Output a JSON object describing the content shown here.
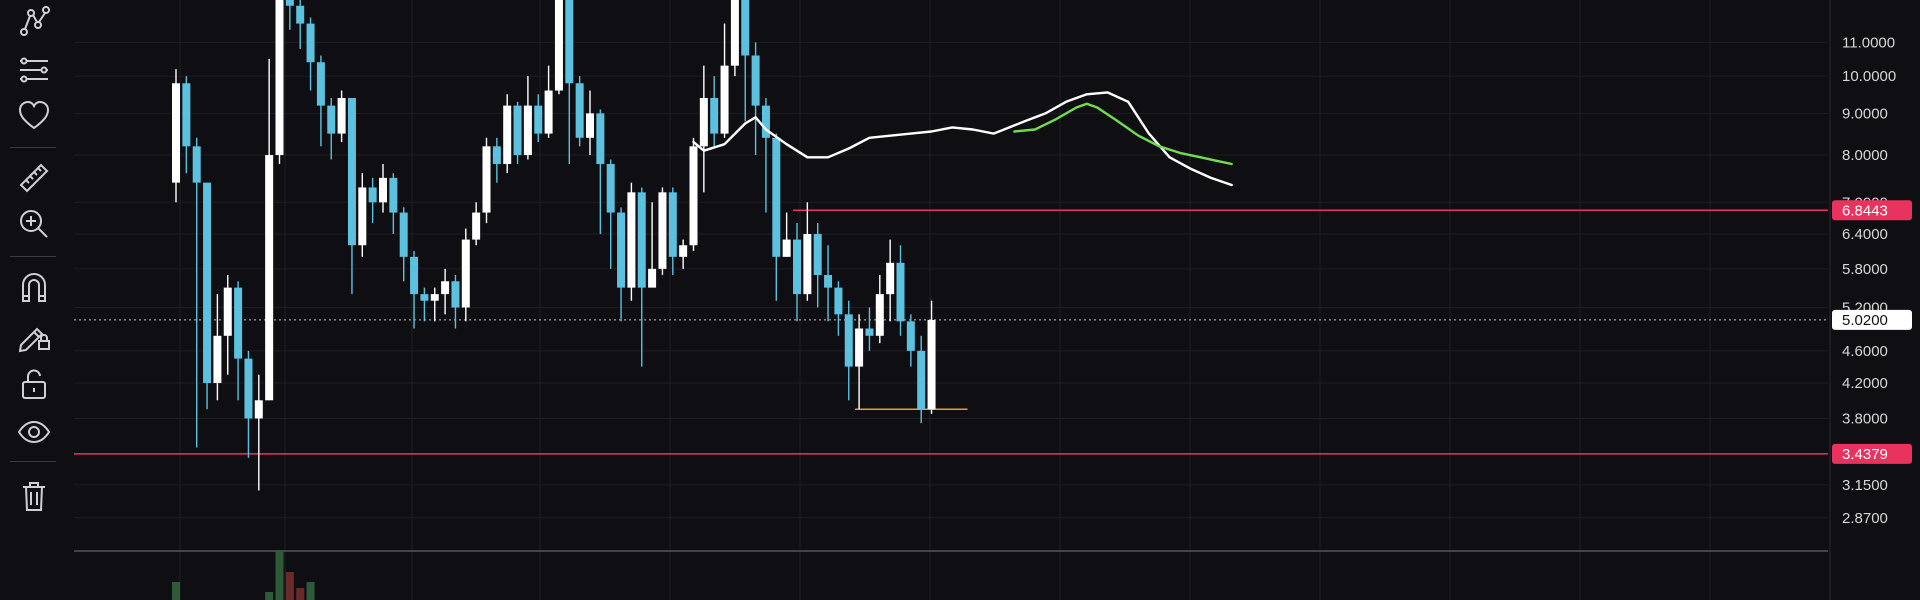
{
  "toolbar": {
    "tools": [
      {
        "name": "path-tool-icon",
        "icon": "path"
      },
      {
        "name": "parallel-lines-tool-icon",
        "icon": "lines"
      },
      {
        "name": "favorites-heart-icon",
        "icon": "heart"
      },
      {
        "name": "ruler-measure-icon",
        "icon": "ruler"
      },
      {
        "name": "zoom-in-icon",
        "icon": "zoom"
      },
      {
        "name": "magnet-snap-icon",
        "icon": "magnet"
      },
      {
        "name": "lock-pencil-drawings-icon",
        "icon": "pencil-lock"
      },
      {
        "name": "unlock-icon",
        "icon": "unlock"
      },
      {
        "name": "visibility-eye-icon",
        "icon": "eye"
      },
      {
        "name": "trash-delete-icon",
        "icon": "trash"
      }
    ]
  },
  "chart_data": {
    "type": "candlestick",
    "price_axis": {
      "scale": "log",
      "ticks": [
        "11.0000",
        "10.0000",
        "9.0000",
        "8.0000",
        "7.0000",
        "6.4000",
        "5.8000",
        "5.2000",
        "4.6000",
        "4.2000",
        "3.8000",
        "3.1500",
        "2.8700"
      ],
      "visible_range": [
        2.62,
        12.4
      ]
    },
    "current_price": {
      "label": "5.0200",
      "value": 5.02
    },
    "horizontal_levels": [
      {
        "label": "6.8443",
        "value": 6.8443,
        "color": "#e8335f",
        "from_index": 60
      },
      {
        "label": "3.4379",
        "value": 3.4379,
        "color": "#e8335f",
        "from_index": 0
      }
    ],
    "low_marker": {
      "value": 3.9,
      "from_index": 66,
      "to_index": 73,
      "color": "#e89b3c"
    },
    "colors": {
      "up": "#ffffff",
      "down": "#5cc0df",
      "ma_white": "#ffffff",
      "ma_green": "#6fdd4f",
      "tag_bg": "#e8335f",
      "current_tag_bg": "#ffffff"
    },
    "candles": [
      [
        7.4,
        9.8,
        10.2,
        7.0
      ],
      [
        9.8,
        8.2,
        10.0,
        7.6
      ],
      [
        8.2,
        7.4,
        8.4,
        3.5
      ],
      [
        7.4,
        4.2,
        7.4,
        3.9
      ],
      [
        4.2,
        4.8,
        5.4,
        4.0
      ],
      [
        4.8,
        5.5,
        5.7,
        4.3
      ],
      [
        5.5,
        4.5,
        5.6,
        4.0
      ],
      [
        4.5,
        3.8,
        4.6,
        3.4
      ],
      [
        3.8,
        4.0,
        4.3,
        3.1
      ],
      [
        4.0,
        8.0,
        10.5,
        4.0
      ],
      [
        8.0,
        12.8,
        13.2,
        7.8
      ],
      [
        12.8,
        12.2,
        13.0,
        11.4
      ],
      [
        12.2,
        11.6,
        12.4,
        10.8
      ],
      [
        11.6,
        10.4,
        11.8,
        9.6
      ],
      [
        10.4,
        9.2,
        10.6,
        8.2
      ],
      [
        9.2,
        8.5,
        9.4,
        7.9
      ],
      [
        8.5,
        9.4,
        9.6,
        8.3
      ],
      [
        9.4,
        6.2,
        9.4,
        5.4
      ],
      [
        6.2,
        7.3,
        7.6,
        6.0
      ],
      [
        7.3,
        7.0,
        7.5,
        6.6
      ],
      [
        7.0,
        7.5,
        7.8,
        6.8
      ],
      [
        7.5,
        6.8,
        7.6,
        6.4
      ],
      [
        6.8,
        6.0,
        6.9,
        5.6
      ],
      [
        6.0,
        5.4,
        6.1,
        4.9
      ],
      [
        5.4,
        5.3,
        5.5,
        5.0
      ],
      [
        5.3,
        5.4,
        5.5,
        5.0
      ],
      [
        5.4,
        5.6,
        5.8,
        5.1
      ],
      [
        5.6,
        5.2,
        5.7,
        4.9
      ],
      [
        5.2,
        6.3,
        6.5,
        5.0
      ],
      [
        6.3,
        6.8,
        7.0,
        6.2
      ],
      [
        6.8,
        8.2,
        8.4,
        6.6
      ],
      [
        8.2,
        7.8,
        8.4,
        7.4
      ],
      [
        7.8,
        9.2,
        9.5,
        7.6
      ],
      [
        9.2,
        8.0,
        9.3,
        7.8
      ],
      [
        8.0,
        9.2,
        10.0,
        7.9
      ],
      [
        9.2,
        8.5,
        9.5,
        8.3
      ],
      [
        8.5,
        9.6,
        10.3,
        8.4
      ],
      [
        9.6,
        12.5,
        13.0,
        9.5
      ],
      [
        12.5,
        9.8,
        12.6,
        7.8
      ],
      [
        9.8,
        8.4,
        10.0,
        8.2
      ],
      [
        8.4,
        9.0,
        9.6,
        8.0
      ],
      [
        9.0,
        7.8,
        9.1,
        6.4
      ],
      [
        7.8,
        6.8,
        7.9,
        5.8
      ],
      [
        6.8,
        5.5,
        6.9,
        5.0
      ],
      [
        5.5,
        7.2,
        7.4,
        5.3
      ],
      [
        7.2,
        5.5,
        7.3,
        4.4
      ],
      [
        5.5,
        5.8,
        7.0,
        5.7
      ],
      [
        5.8,
        7.2,
        7.3,
        5.7
      ],
      [
        7.2,
        6.0,
        7.3,
        5.7
      ],
      [
        6.0,
        6.2,
        6.3,
        5.8
      ],
      [
        6.2,
        8.2,
        8.4,
        6.1
      ],
      [
        8.2,
        9.4,
        10.3,
        7.2
      ],
      [
        9.4,
        8.5,
        10.0,
        8.2
      ],
      [
        8.5,
        10.3,
        11.6,
        8.4
      ],
      [
        10.3,
        12.4,
        12.8,
        10.0
      ],
      [
        12.4,
        10.6,
        13.0,
        8.8
      ],
      [
        10.6,
        9.2,
        11.0,
        8.0
      ],
      [
        9.2,
        8.4,
        9.4,
        6.8
      ],
      [
        8.4,
        6.0,
        8.5,
        5.3
      ],
      [
        6.0,
        6.3,
        6.8,
        6.0
      ],
      [
        6.3,
        5.4,
        6.6,
        5.0
      ],
      [
        5.4,
        6.4,
        7.0,
        5.3
      ],
      [
        6.4,
        5.7,
        6.6,
        5.2
      ],
      [
        5.7,
        5.5,
        6.2,
        5.0
      ],
      [
        5.5,
        5.1,
        5.6,
        4.8
      ],
      [
        5.1,
        4.4,
        5.3,
        4.0
      ],
      [
        4.4,
        4.9,
        5.1,
        3.9
      ],
      [
        4.9,
        4.8,
        5.2,
        4.6
      ],
      [
        4.8,
        5.4,
        5.7,
        4.7
      ],
      [
        5.4,
        5.9,
        6.3,
        5.0
      ],
      [
        5.9,
        5.0,
        6.2,
        4.8
      ],
      [
        5.0,
        4.6,
        5.1,
        4.4
      ],
      [
        4.6,
        3.9,
        4.8,
        3.75
      ],
      [
        3.9,
        5.02,
        5.3,
        3.85
      ]
    ],
    "ma_white": [
      [
        50,
        8.3
      ],
      [
        51,
        8.1
      ],
      [
        53,
        8.25
      ],
      [
        55,
        8.75
      ],
      [
        56,
        8.9
      ],
      [
        57,
        8.6
      ],
      [
        59,
        8.25
      ],
      [
        61,
        7.95
      ],
      [
        63,
        7.95
      ],
      [
        65,
        8.15
      ],
      [
        67,
        8.4
      ],
      [
        69,
        8.45
      ],
      [
        71,
        8.5
      ],
      [
        73,
        8.55
      ],
      [
        75,
        8.65
      ],
      [
        77,
        8.6
      ],
      [
        79,
        8.5
      ],
      [
        80,
        8.6
      ],
      [
        82,
        8.8
      ],
      [
        84,
        9.0
      ],
      [
        86,
        9.3
      ],
      [
        88,
        9.5
      ],
      [
        90,
        9.55
      ],
      [
        92,
        9.3
      ],
      [
        94,
        8.5
      ],
      [
        96,
        7.95
      ],
      [
        98,
        7.7
      ],
      [
        100,
        7.5
      ],
      [
        102,
        7.35
      ]
    ],
    "ma_green": [
      [
        81,
        8.55
      ],
      [
        83,
        8.6
      ],
      [
        85,
        8.85
      ],
      [
        87,
        9.15
      ],
      [
        88,
        9.25
      ],
      [
        89,
        9.15
      ],
      [
        91,
        8.8
      ],
      [
        93,
        8.45
      ],
      [
        95,
        8.2
      ],
      [
        97,
        8.05
      ],
      [
        99,
        7.95
      ],
      [
        101,
        7.85
      ],
      [
        102,
        7.8
      ]
    ],
    "volume": [
      {
        "i": 0,
        "h": 18,
        "c": "#2e5a3a"
      },
      {
        "i": 9,
        "h": 8,
        "c": "#2e5a3a"
      },
      {
        "i": 10,
        "h": 50,
        "c": "#2e5a3a"
      },
      {
        "i": 11,
        "h": 28,
        "c": "#6b2a2a"
      },
      {
        "i": 12,
        "h": 12,
        "c": "#6b2a2a"
      },
      {
        "i": 13,
        "h": 18,
        "c": "#2e5a3a"
      }
    ]
  }
}
